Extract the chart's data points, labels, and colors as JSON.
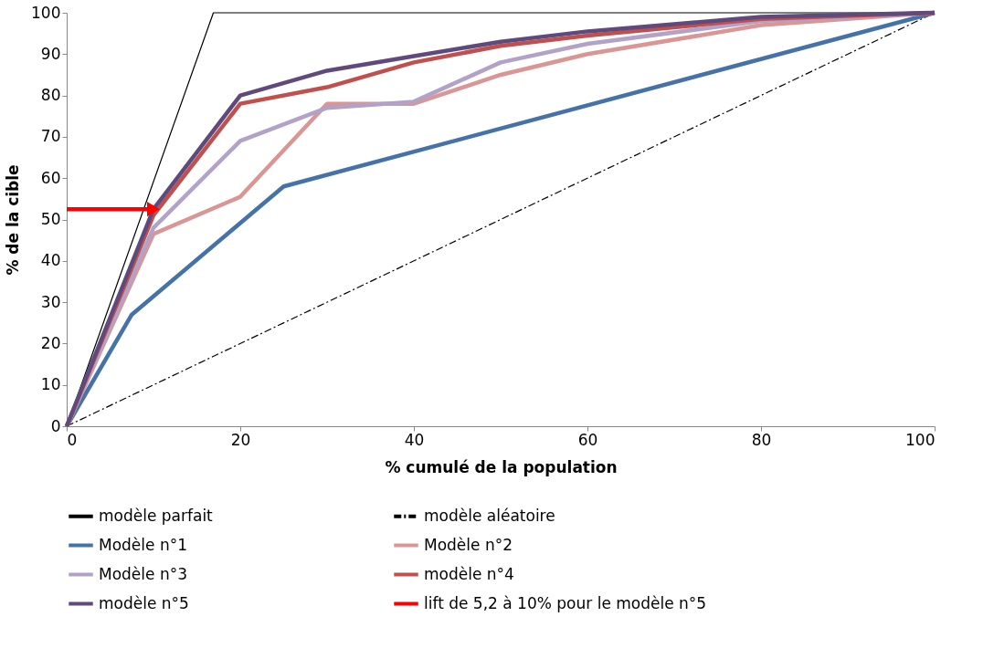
{
  "chart_data": {
    "type": "line",
    "xlabel": "% cumulé de la population",
    "ylabel": "% de la cible",
    "xlim": [
      0,
      100
    ],
    "xticks": [
      0,
      20,
      40,
      60,
      80,
      100
    ],
    "ylim": [
      0,
      100
    ],
    "yticks": [
      0,
      10,
      20,
      30,
      40,
      50,
      60,
      70,
      80,
      90,
      100
    ],
    "grid": false,
    "legend": "bottom",
    "marker": "none",
    "series": [
      {
        "name": "modèle parfait",
        "color": "#000000",
        "line_style": "solid",
        "x": [
          0,
          16.9,
          100
        ],
        "values": [
          0,
          100,
          100
        ]
      },
      {
        "name": "modèle aléatoire",
        "color": "#000000",
        "line_style": "dashdot",
        "x": [
          0,
          100
        ],
        "values": [
          0,
          100
        ]
      },
      {
        "name": "Modèle n°1",
        "color": "#4572a7",
        "x": [
          0,
          7.5,
          25,
          100
        ],
        "values": [
          0,
          27,
          58,
          100
        ]
      },
      {
        "name": "Modèle n°2",
        "color": "#d99694",
        "x": [
          0,
          10,
          20,
          30,
          40,
          50,
          60,
          80,
          100
        ],
        "values": [
          0,
          46.5,
          55.5,
          78,
          78,
          85,
          90,
          97,
          100
        ]
      },
      {
        "name": "Modèle n°3",
        "color": "#b3a2c7",
        "x": [
          0,
          10,
          20,
          30,
          40,
          50,
          60,
          80,
          100
        ],
        "values": [
          0,
          48,
          69,
          77,
          78.5,
          88,
          92.5,
          98,
          100
        ]
      },
      {
        "name": "modèle n°4",
        "color": "#c0504d",
        "x": [
          0,
          10,
          20,
          30,
          40,
          50,
          60,
          80,
          100
        ],
        "values": [
          0,
          51,
          78,
          82,
          88,
          92,
          94.5,
          98.5,
          100
        ]
      },
      {
        "name": "modèle n°5",
        "color": "#604a7b",
        "x": [
          0,
          10,
          20,
          30,
          40,
          50,
          60,
          80,
          100
        ],
        "values": [
          0,
          52.5,
          80,
          86,
          89.5,
          93,
          95.5,
          99,
          100
        ]
      },
      {
        "name": "lift de 5,2 à 10% pour le modèle n°5",
        "color": "#ff0000",
        "marker": "triangle",
        "x": [
          0,
          10
        ],
        "values": [
          52.5,
          52.5
        ]
      }
    ]
  }
}
